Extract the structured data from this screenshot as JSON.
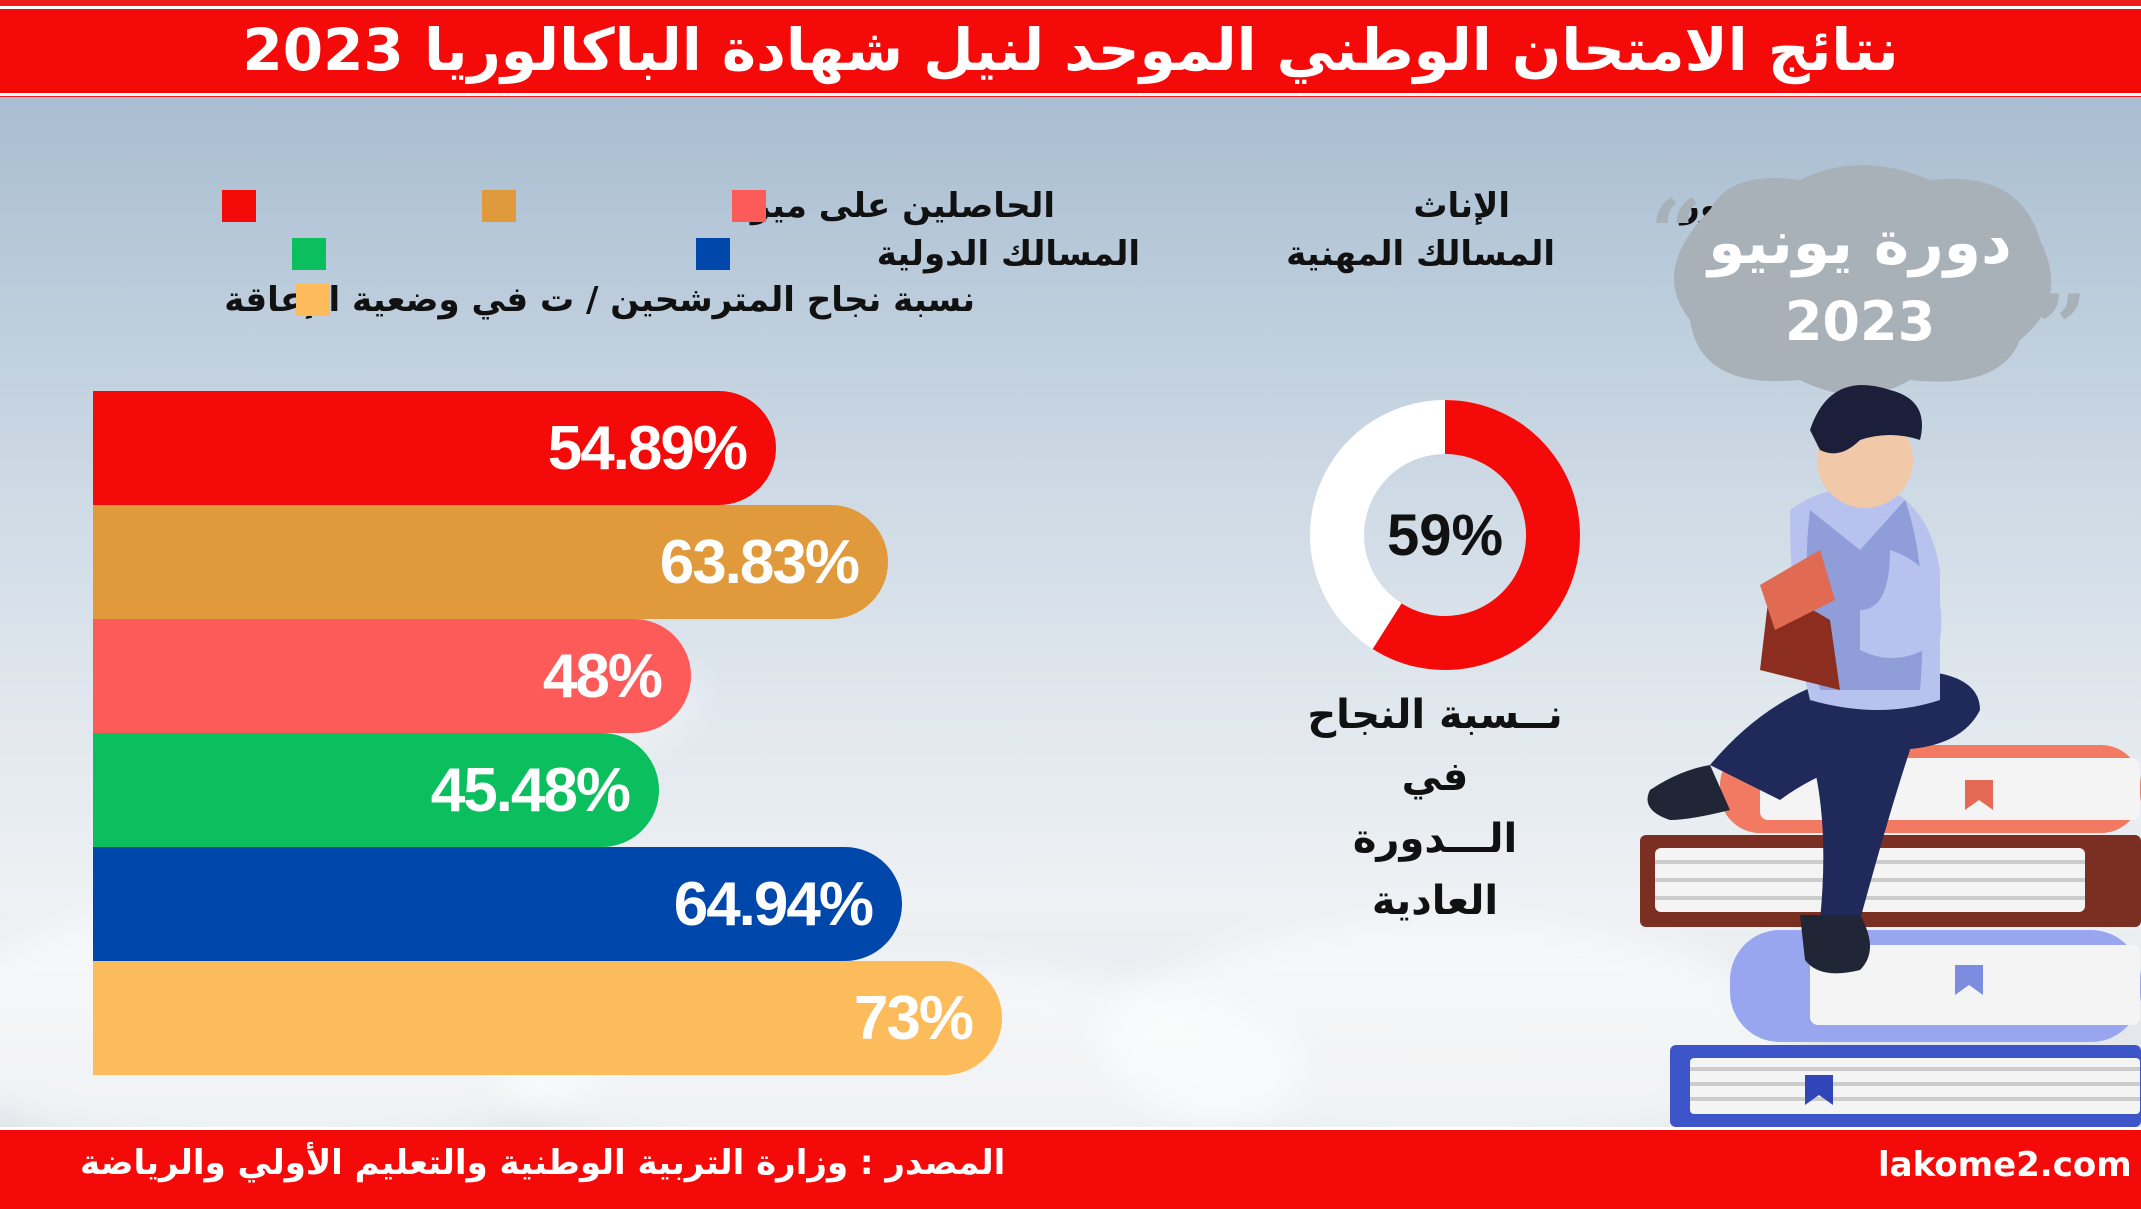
{
  "title": "نتائج الامتحان الوطني الموحد لنيل  شهادة الباكالوريا 2023",
  "session": {
    "line1": "دورة يونيو",
    "line2": "2023"
  },
  "legend": [
    {
      "label": "الذكور",
      "color": "#f50a0a"
    },
    {
      "label": "الإناث",
      "color": "#e0993b"
    },
    {
      "label": "الحاصلين على ميزة",
      "color": "#fd5a5a"
    },
    {
      "label": "المسالك المهنية",
      "color": "#0bbf5f"
    },
    {
      "label": "المسالك الدولية",
      "color": "#0047ab"
    },
    {
      "label": "نسبة نجاح المترشحين / ت في وضعية الإعاقة",
      "color": "#fdbc5b"
    }
  ],
  "chart_data": [
    {
      "type": "bar",
      "orientation": "horizontal",
      "categories": [
        "الذكور",
        "الإناث",
        "الحاصلين على ميزة",
        "المسالك المهنية",
        "المسالك الدولية",
        "نسبة نجاح المترشحين / ت في وضعية الإعاقة"
      ],
      "values": [
        54.89,
        63.83,
        48,
        45.48,
        64.94,
        73
      ],
      "value_labels": [
        "54.89%",
        "63.83%",
        "48%",
        "45.48%",
        "64.94%",
        "73%"
      ],
      "colors": [
        "#f50a0a",
        "#e0993b",
        "#fd5a5a",
        "#0bbf5f",
        "#0047ab",
        "#fdbc5b"
      ],
      "legend_position": "top"
    },
    {
      "type": "pie",
      "style": "donut",
      "values": [
        59,
        41
      ],
      "value_label": "59%",
      "caption_line1": "نــسبة النجاح في",
      "caption_line2": "الـــدورة العادية",
      "colors": [
        "#f50a0a",
        "#ffffff"
      ]
    }
  ],
  "footer": {
    "source": "المصدر : وزارة التربية الوطنية والتعليم الأولي والرياضة",
    "site": "lakome2.com"
  }
}
